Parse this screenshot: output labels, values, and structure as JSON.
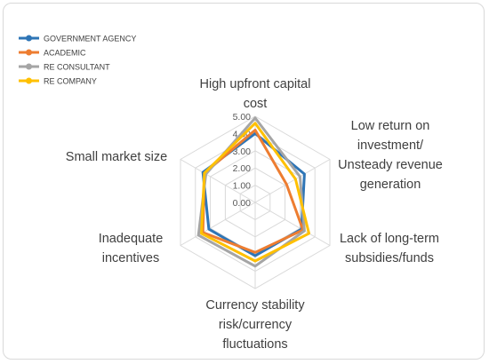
{
  "chart_data": {
    "type": "radar",
    "categories": [
      [
        "High upfront capital",
        "cost"
      ],
      [
        "Low return on",
        "investment/",
        "Unsteady revenue",
        "generation"
      ],
      [
        "Lack of long-term",
        "subsidies/funds"
      ],
      [
        "Currency stability",
        "risk/currency",
        "fluctuations"
      ],
      [
        "Inadequate",
        "incentives"
      ],
      [
        "Small market size"
      ]
    ],
    "ticks": [
      "0.00",
      "1.00",
      "2.00",
      "3.00",
      "4.00",
      "5.00"
    ],
    "rlim": [
      0,
      5
    ],
    "legend_position": "top-left",
    "grid": true,
    "series": [
      {
        "name": "GOVERNMENT AGENCY",
        "color": "#2e75b6",
        "values": [
          4.0,
          3.3,
          3.1,
          3.1,
          3.1,
          3.5
        ]
      },
      {
        "name": "ACADEMIC",
        "color": "#ed7d31",
        "values": [
          4.2,
          2.1,
          3.2,
          2.9,
          3.5,
          3.4
        ]
      },
      {
        "name": "RE CONSULTANT",
        "color": "#a5a5a5",
        "values": [
          4.9,
          3.0,
          3.3,
          3.7,
          3.8,
          3.3
        ]
      },
      {
        "name": "RE COMPANY",
        "color": "#ffc000",
        "values": [
          4.6,
          2.7,
          3.6,
          3.4,
          3.6,
          3.4
        ]
      }
    ]
  }
}
